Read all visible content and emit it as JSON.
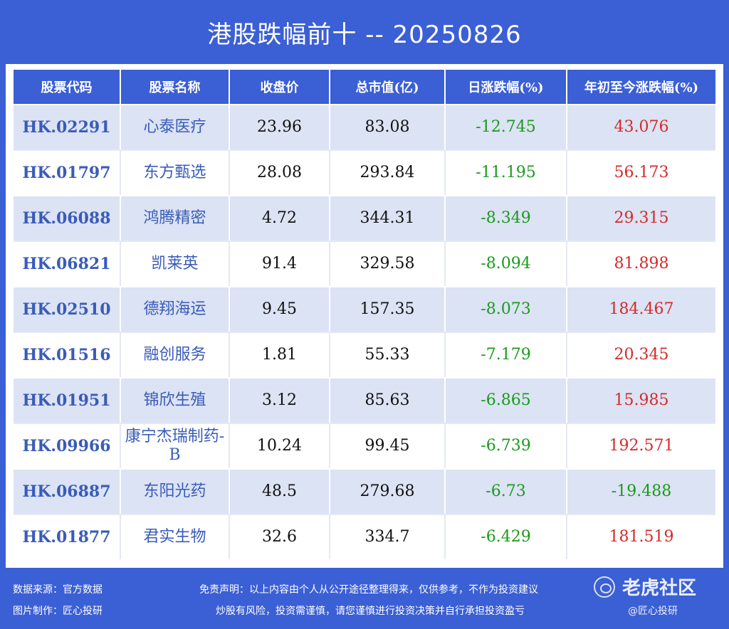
{
  "title": "港股跌幅前十 -- 20250826",
  "table": {
    "headers": [
      "股票代码",
      "股票名称",
      "收盘价",
      "总市值(亿)",
      "日涨跌幅(%)",
      "年初至今涨跌幅(%)"
    ],
    "rows": [
      {
        "code": "HK.02291",
        "name": "心泰医疗",
        "close": "23.96",
        "cap": "83.08",
        "day": "-12.745",
        "ytd": "43.076"
      },
      {
        "code": "HK.01797",
        "name": "东方甄选",
        "close": "28.08",
        "cap": "293.84",
        "day": "-11.195",
        "ytd": "56.173"
      },
      {
        "code": "HK.06088",
        "name": "鸿腾精密",
        "close": "4.72",
        "cap": "344.31",
        "day": "-8.349",
        "ytd": "29.315"
      },
      {
        "code": "HK.06821",
        "name": "凯莱英",
        "close": "91.4",
        "cap": "329.58",
        "day": "-8.094",
        "ytd": "81.898"
      },
      {
        "code": "HK.02510",
        "name": "德翔海运",
        "close": "9.45",
        "cap": "157.35",
        "day": "-8.073",
        "ytd": "184.467"
      },
      {
        "code": "HK.01516",
        "name": "融创服务",
        "close": "1.81",
        "cap": "55.33",
        "day": "-7.179",
        "ytd": "20.345"
      },
      {
        "code": "HK.01951",
        "name": "锦欣生殖",
        "close": "3.12",
        "cap": "85.63",
        "day": "-6.865",
        "ytd": "15.985"
      },
      {
        "code": "HK.09966",
        "name": "康宁杰瑞制药-B",
        "close": "10.24",
        "cap": "99.45",
        "day": "-6.739",
        "ytd": "192.571"
      },
      {
        "code": "HK.06887",
        "name": "东阳光药",
        "close": "48.5",
        "cap": "279.68",
        "day": "-6.73",
        "ytd": "-19.488"
      },
      {
        "code": "HK.01877",
        "name": "君实生物",
        "close": "32.6",
        "cap": "334.7",
        "day": "-6.429",
        "ytd": "181.519"
      }
    ]
  },
  "footer": {
    "source": "数据来源：官方数据",
    "maker": "图片制作：匠心投研",
    "disclaimer1": "免责声明：以上内容由个人从公开途径整理得来，仅供参考，不作为投资建议",
    "disclaimer2": "炒股有风险，投资需谨慎，请您谨慎进行投资决策并自行承担投资盈亏"
  },
  "watermark": {
    "brand": "老虎社区",
    "sub": "@匠心投研"
  },
  "colors": {
    "background": "#3b5fd4",
    "negative": "#1a9a1a",
    "positive": "#d42a2a",
    "code_text": "#3a5bb8"
  }
}
